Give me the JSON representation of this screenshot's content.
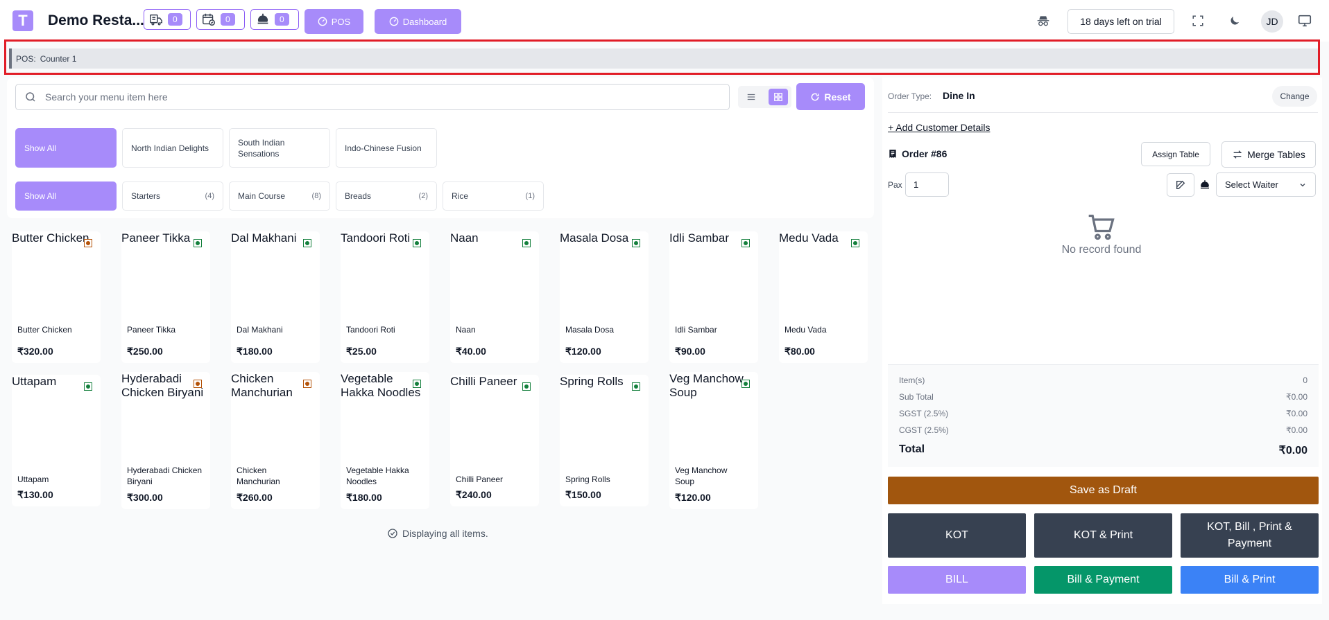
{
  "header": {
    "logo_letter": "T",
    "restaurant_name": "Demo Resta...",
    "counters": [
      {
        "icon": "delivery-icon",
        "count": "0"
      },
      {
        "icon": "calendar-check-icon",
        "count": "0"
      },
      {
        "icon": "waiter-icon",
        "count": "0"
      }
    ],
    "pos_label": "POS",
    "dashboard_label": "Dashboard",
    "trial_text": "18 days left on trial",
    "avatar_initials": "JD"
  },
  "posbar": {
    "label": "POS:",
    "counter": "Counter 1"
  },
  "search": {
    "placeholder": "Search your menu item here"
  },
  "reset_label": "Reset",
  "menus": [
    {
      "label": "Show All",
      "active": true
    },
    {
      "label": "North Indian Delights"
    },
    {
      "label": "South Indian Sensations"
    },
    {
      "label": "Indo-Chinese Fusion"
    }
  ],
  "categories": [
    {
      "label": "Show All",
      "active": true,
      "count": ""
    },
    {
      "label": "Starters",
      "count": "(4)"
    },
    {
      "label": "Main Course",
      "count": "(8)"
    },
    {
      "label": "Breads",
      "count": "(2)"
    },
    {
      "label": "Rice",
      "count": "(1)"
    }
  ],
  "items": [
    {
      "alt": "Butter Chicken",
      "name": "Butter Chicken",
      "price": "₹320.00",
      "type": "nonveg"
    },
    {
      "alt": "Paneer Tikka",
      "name": "Paneer Tikka",
      "price": "₹250.00",
      "type": "veg"
    },
    {
      "alt": "Dal Makhani",
      "name": "Dal Makhani",
      "price": "₹180.00",
      "type": "veg"
    },
    {
      "alt": "Tandoori Roti",
      "name": "Tandoori Roti",
      "price": "₹25.00",
      "type": "veg"
    },
    {
      "alt": "Naan",
      "name": "Naan",
      "price": "₹40.00",
      "type": "veg"
    },
    {
      "alt": "Masala Dosa",
      "name": "Masala Dosa",
      "price": "₹120.00",
      "type": "veg"
    },
    {
      "alt": "Idli Sambar",
      "name": "Idli Sambar",
      "price": "₹90.00",
      "type": "veg"
    },
    {
      "alt": "Medu Vada",
      "name": "Medu Vada",
      "price": "₹80.00",
      "type": "veg"
    },
    {
      "alt": "Uttapam",
      "name": "Uttapam",
      "price": "₹130.00",
      "type": "veg"
    },
    {
      "alt": "Hyderabadi Chicken Biryani",
      "name": "Hyderabadi Chicken Biryani",
      "price": "₹300.00",
      "type": "nonveg"
    },
    {
      "alt": "Chicken Manchurian",
      "name": "Chicken Manchurian",
      "price": "₹260.00",
      "type": "nonveg"
    },
    {
      "alt": "Vegetable Hakka Noodles",
      "name": "Vegetable Hakka Noodles",
      "price": "₹180.00",
      "type": "veg"
    },
    {
      "alt": "Chilli Paneer",
      "name": "Chilli Paneer",
      "price": "₹240.00",
      "type": "veg"
    },
    {
      "alt": "Spring Rolls",
      "name": "Spring Rolls",
      "price": "₹150.00",
      "type": "veg"
    },
    {
      "alt": "Veg Manchow Soup",
      "name": "Veg Manchow Soup",
      "price": "₹120.00",
      "type": "veg"
    }
  ],
  "displaying_text": "Displaying all items.",
  "order": {
    "type_label": "Order Type:",
    "type_value": "Dine In",
    "change_label": "Change",
    "add_customer": "+ Add Customer Details",
    "order_no": "Order #86",
    "assign_table": "Assign Table",
    "merge_tables": "Merge Tables",
    "pax_label": "Pax",
    "pax_value": "1",
    "select_waiter": "Select Waiter",
    "empty_text": "No record found"
  },
  "summary": {
    "items_label": "Item(s)",
    "items_value": "0",
    "subtotal_label": "Sub Total",
    "subtotal_value": "₹0.00",
    "sgst_label": "SGST (2.5%)",
    "sgst_value": "₹0.00",
    "cgst_label": "CGST (2.5%)",
    "cgst_value": "₹0.00",
    "total_label": "Total",
    "total_value": "₹0.00"
  },
  "actions": {
    "save_draft": "Save as Draft",
    "kot": "KOT",
    "kot_print": "KOT & Print",
    "kot_bill_print_payment": "KOT, Bill , Print & Payment",
    "bill": "BILL",
    "bill_payment": "Bill & Payment",
    "bill_print": "Bill & Print"
  },
  "colors": {
    "accent": "#a78bfa",
    "draft": "#a1560e",
    "dark": "#374151",
    "green": "#059669",
    "blue": "#3b82f6",
    "highlight": "#e11d27"
  }
}
